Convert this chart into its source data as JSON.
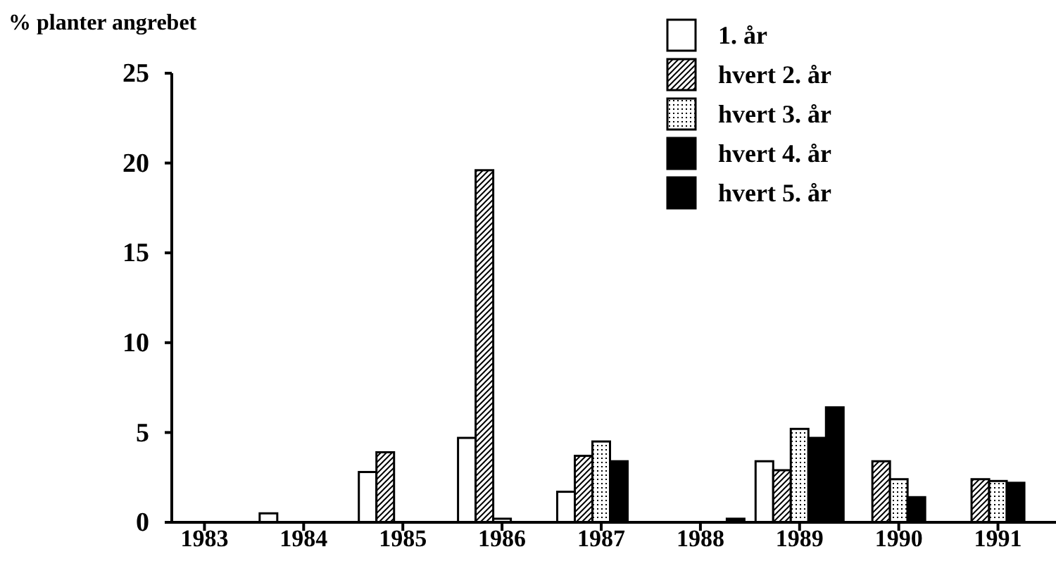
{
  "chart_data": {
    "type": "bar",
    "ylabel": "% planter angrebet",
    "categories": [
      "1983",
      "1984",
      "1985",
      "1986",
      "1987",
      "1988",
      "1989",
      "1990",
      "1991"
    ],
    "ylim": [
      0,
      25
    ],
    "yticks": [
      0,
      5,
      10,
      15,
      20,
      25
    ],
    "legend": "top right",
    "grid": false,
    "series": [
      {
        "name": "1. år",
        "color": "#ffffff",
        "values": [
          null,
          0.5,
          2.8,
          4.7,
          1.7,
          null,
          3.4,
          null,
          null
        ]
      },
      {
        "name": "hvert 2. år",
        "color": "#000000",
        "values": [
          null,
          null,
          3.9,
          19.6,
          3.7,
          null,
          2.9,
          3.4,
          2.4
        ]
      },
      {
        "name": "hvert 3. år",
        "color": "#000000",
        "values": [
          null,
          null,
          null,
          0.2,
          4.5,
          null,
          5.2,
          2.4,
          2.3
        ]
      },
      {
        "name": "hvert 4. år",
        "color": "#000000",
        "values": [
          null,
          null,
          null,
          null,
          3.4,
          null,
          4.7,
          1.4,
          2.2
        ]
      },
      {
        "name": "hvert 5. år",
        "color": "#000000",
        "values": [
          null,
          null,
          null,
          null,
          null,
          0.2,
          6.4,
          null,
          null
        ]
      }
    ]
  }
}
